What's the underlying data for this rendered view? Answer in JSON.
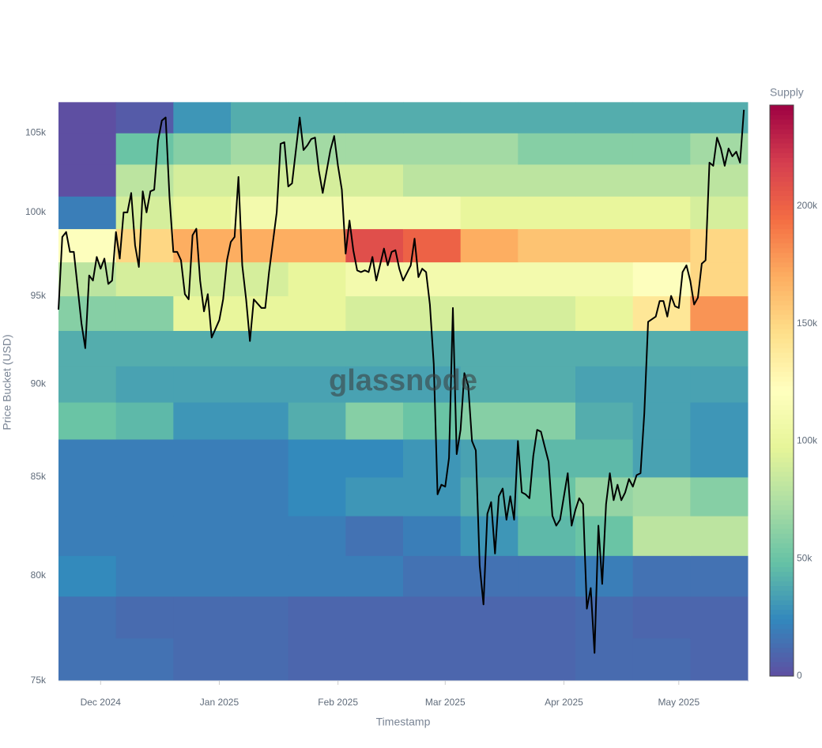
{
  "chart_data": {
    "type": "heatmap",
    "y_title": "Price Bucket (USD)",
    "x_title": "Timestamp",
    "watermark": "glassnode",
    "colorbar_title": "Supply",
    "log_y": true,
    "ylim": [
      75000,
      107800
    ],
    "yticks": [
      {
        "value": 75000,
        "label": "75k"
      },
      {
        "value": 80000,
        "label": "80k"
      },
      {
        "value": 85000,
        "label": "85k"
      },
      {
        "value": 90000,
        "label": "90k"
      },
      {
        "value": 95000,
        "label": "95k"
      },
      {
        "value": 100000,
        "label": "100k"
      },
      {
        "value": 105000,
        "label": "105k"
      }
    ],
    "xlim": [
      "2024-11-20",
      "2025-05-19"
    ],
    "xticks": [
      {
        "value": "2024-12-01",
        "label": "Dec 2024"
      },
      {
        "value": "2025-01-01",
        "label": "Jan 2025"
      },
      {
        "value": "2025-02-01",
        "label": "Feb 2025"
      },
      {
        "value": "2025-03-01",
        "label": "Mar 2025"
      },
      {
        "value": "2025-04-01",
        "label": "Apr 2025"
      },
      {
        "value": "2025-05-01",
        "label": "May 2025"
      }
    ],
    "zlim": [
      0,
      243000
    ],
    "zticks": [
      {
        "value": 0,
        "label": "0"
      },
      {
        "value": 50000,
        "label": "50k"
      },
      {
        "value": 100000,
        "label": "100k"
      },
      {
        "value": 150000,
        "label": "150k"
      },
      {
        "value": 200000,
        "label": "200k"
      }
    ],
    "colorscale": [
      [
        0,
        "#5e4fa2"
      ],
      [
        0.1,
        "#3288bd"
      ],
      [
        0.2,
        "#66c2a5"
      ],
      [
        0.3,
        "#abdda4"
      ],
      [
        0.4,
        "#e6f598"
      ],
      [
        0.5,
        "#ffffbf"
      ],
      [
        0.6,
        "#fee08b"
      ],
      [
        0.7,
        "#fdae61"
      ],
      [
        0.8,
        "#f46d43"
      ],
      [
        0.9,
        "#d53e4f"
      ],
      [
        1,
        "#9e0142"
      ]
    ],
    "x_bins": [
      "2024-11-20",
      "2024-12-05",
      "2024-12-20",
      "2025-01-04",
      "2025-01-19",
      "2025-02-03",
      "2025-02-18",
      "2025-03-05",
      "2025-03-20",
      "2025-04-04",
      "2025-04-19",
      "2025-05-04",
      "2025-05-19"
    ],
    "y_bins": [
      75000,
      77000,
      79000,
      81000,
      83000,
      85000,
      87000,
      89000,
      91000,
      93000,
      95000,
      97000,
      99000,
      101000,
      103000,
      105000,
      107000
    ],
    "z": [
      [
        15000,
        15000,
        12000,
        12000,
        10000,
        10000,
        10000,
        10000,
        10000,
        12000,
        12000,
        10000
      ],
      [
        15000,
        12000,
        12000,
        12000,
        10000,
        10000,
        10000,
        10000,
        10000,
        12000,
        10000,
        10000
      ],
      [
        25000,
        20000,
        20000,
        20000,
        20000,
        20000,
        15000,
        15000,
        15000,
        20000,
        15000,
        15000
      ],
      [
        20000,
        20000,
        20000,
        20000,
        20000,
        15000,
        20000,
        30000,
        45000,
        50000,
        80000,
        80000
      ],
      [
        20000,
        20000,
        20000,
        20000,
        25000,
        30000,
        30000,
        40000,
        50000,
        65000,
        70000,
        60000
      ],
      [
        20000,
        20000,
        20000,
        20000,
        25000,
        25000,
        30000,
        35000,
        45000,
        45000,
        35000,
        30000
      ],
      [
        50000,
        45000,
        30000,
        30000,
        40000,
        60000,
        50000,
        60000,
        60000,
        40000,
        35000,
        30000
      ],
      [
        40000,
        35000,
        35000,
        35000,
        35000,
        35000,
        35000,
        40000,
        40000,
        35000,
        35000,
        35000
      ],
      [
        40000,
        40000,
        40000,
        40000,
        40000,
        40000,
        40000,
        40000,
        40000,
        40000,
        40000,
        40000
      ],
      [
        60000,
        60000,
        100000,
        100000,
        100000,
        90000,
        90000,
        90000,
        90000,
        100000,
        140000,
        180000
      ],
      [
        80000,
        90000,
        90000,
        90000,
        100000,
        110000,
        110000,
        110000,
        110000,
        110000,
        120000,
        150000
      ],
      [
        120000,
        150000,
        170000,
        170000,
        170000,
        210000,
        200000,
        170000,
        160000,
        160000,
        160000,
        150000
      ],
      [
        20000,
        90000,
        100000,
        110000,
        110000,
        110000,
        110000,
        100000,
        100000,
        100000,
        100000,
        90000
      ],
      [
        0,
        80000,
        90000,
        90000,
        90000,
        90000,
        80000,
        80000,
        80000,
        80000,
        80000,
        80000
      ],
      [
        0,
        50000,
        60000,
        70000,
        70000,
        70000,
        70000,
        70000,
        60000,
        60000,
        60000,
        70000
      ],
      [
        0,
        5000,
        30000,
        40000,
        40000,
        40000,
        40000,
        40000,
        40000,
        40000,
        40000,
        40000
      ]
    ],
    "line": {
      "color": "#000000",
      "x": [
        "2024-11-20",
        "2024-11-21",
        "2024-11-22",
        "2024-11-23",
        "2024-11-24",
        "2024-11-26",
        "2024-11-27",
        "2024-11-28",
        "2024-11-29",
        "2024-11-30",
        "2024-12-01",
        "2024-12-02",
        "2024-12-03",
        "2024-12-04",
        "2024-12-05",
        "2024-12-06",
        "2024-12-07",
        "2024-12-08",
        "2024-12-09",
        "2024-12-10",
        "2024-12-11",
        "2024-12-12",
        "2024-12-13",
        "2024-12-14",
        "2024-12-15",
        "2024-12-16",
        "2024-12-17",
        "2024-12-18",
        "2024-12-19",
        "2024-12-20",
        "2024-12-21",
        "2024-12-22",
        "2024-12-23",
        "2024-12-24",
        "2024-12-25",
        "2024-12-26",
        "2024-12-27",
        "2024-12-28",
        "2024-12-29",
        "2024-12-30",
        "2025-01-01",
        "2025-01-02",
        "2025-01-03",
        "2025-01-04",
        "2025-01-05",
        "2025-01-06",
        "2025-01-07",
        "2025-01-08",
        "2025-01-09",
        "2025-01-10",
        "2025-01-12",
        "2025-01-13",
        "2025-01-14",
        "2025-01-16",
        "2025-01-17",
        "2025-01-18",
        "2025-01-19",
        "2025-01-20",
        "2025-01-22",
        "2025-01-23",
        "2025-01-24",
        "2025-01-25",
        "2025-01-26",
        "2025-01-27",
        "2025-01-28",
        "2025-01-30",
        "2025-01-31",
        "2025-02-01",
        "2025-02-02",
        "2025-02-03",
        "2025-02-04",
        "2025-02-05",
        "2025-02-06",
        "2025-02-07",
        "2025-02-08",
        "2025-02-09",
        "2025-02-10",
        "2025-02-11",
        "2025-02-13",
        "2025-02-14",
        "2025-02-15",
        "2025-02-16",
        "2025-02-17",
        "2025-02-18",
        "2025-02-20",
        "2025-02-21",
        "2025-02-22",
        "2025-02-23",
        "2025-02-24",
        "2025-02-25",
        "2025-02-26",
        "2025-02-27",
        "2025-02-28",
        "2025-03-01",
        "2025-03-02",
        "2025-03-03",
        "2025-03-04",
        "2025-03-05",
        "2025-03-06",
        "2025-03-07",
        "2025-03-08",
        "2025-03-09",
        "2025-03-10",
        "2025-03-11",
        "2025-03-12",
        "2025-03-13",
        "2025-03-14",
        "2025-03-15",
        "2025-03-16",
        "2025-03-17",
        "2025-03-18",
        "2025-03-19",
        "2025-03-20",
        "2025-03-21",
        "2025-03-22",
        "2025-03-23",
        "2025-03-24",
        "2025-03-25",
        "2025-03-26",
        "2025-03-27",
        "2025-03-28",
        "2025-03-29",
        "2025-03-30",
        "2025-03-31",
        "2025-04-02",
        "2025-04-03",
        "2025-04-04",
        "2025-04-05",
        "2025-04-06",
        "2025-04-07",
        "2025-04-08",
        "2025-04-09",
        "2025-04-10",
        "2025-04-11",
        "2025-04-12",
        "2025-04-13",
        "2025-04-14",
        "2025-04-15",
        "2025-04-16",
        "2025-04-17",
        "2025-04-18",
        "2025-04-19",
        "2025-04-20",
        "2025-04-21",
        "2025-04-22",
        "2025-04-23",
        "2025-04-25",
        "2025-04-26",
        "2025-04-27",
        "2025-04-28",
        "2025-04-29",
        "2025-04-30",
        "2025-05-01",
        "2025-05-02",
        "2025-05-03",
        "2025-05-04",
        "2025-05-05",
        "2025-05-06",
        "2025-05-07",
        "2025-05-08",
        "2025-05-09",
        "2025-05-10",
        "2025-05-11",
        "2025-05-12",
        "2025-05-13",
        "2025-05-14",
        "2025-05-15",
        "2025-05-16",
        "2025-05-17",
        "2025-05-18"
      ],
      "values": [
        94200,
        98500,
        98800,
        97600,
        97600,
        93400,
        92000,
        96200,
        95900,
        97300,
        96600,
        97200,
        95700,
        95900,
        98800,
        97200,
        100000,
        100000,
        101200,
        98000,
        96700,
        101300,
        100000,
        101300,
        101400,
        104500,
        105800,
        106000,
        100900,
        97600,
        97600,
        97100,
        95100,
        94800,
        98600,
        99000,
        95900,
        94100,
        95100,
        92600,
        93600,
        94800,
        97100,
        98200,
        98500,
        102200,
        96800,
        94800,
        92400,
        94800,
        94300,
        94300,
        96400,
        100000,
        104300,
        104400,
        101600,
        101800,
        106000,
        103900,
        104200,
        104600,
        104700,
        102600,
        101200,
        103900,
        104800,
        102900,
        101400,
        97500,
        99500,
        97700,
        96500,
        96400,
        96500,
        96400,
        97300,
        95900,
        97800,
        96800,
        97600,
        97700,
        96600,
        95900,
        96800,
        98400,
        96100,
        96600,
        96400,
        94500,
        91100,
        84100,
        84600,
        84500,
        86000,
        94300,
        86200,
        87500,
        90600,
        89900,
        86900,
        86400,
        80500,
        78600,
        83100,
        83700,
        81100,
        84000,
        84400,
        82800,
        84000,
        82800,
        86900,
        84200,
        84100,
        83900,
        86100,
        87500,
        87400,
        86600,
        85800,
        83000,
        82500,
        82800,
        85200,
        82500,
        83300,
        83900,
        83600,
        78400,
        79400,
        76300,
        82500,
        79600,
        83600,
        85200,
        83800,
        84600,
        83800,
        84200,
        84900,
        84500,
        85100,
        85200,
        88400,
        93500,
        93800,
        94700,
        94700,
        93800,
        95000,
        94400,
        94300,
        96400,
        96800,
        95900,
        94500,
        94900,
        96900,
        97100,
        103100,
        102900,
        104700,
        104000,
        102900,
        104000,
        103500,
        103800,
        103100,
        106500
      ]
    }
  }
}
